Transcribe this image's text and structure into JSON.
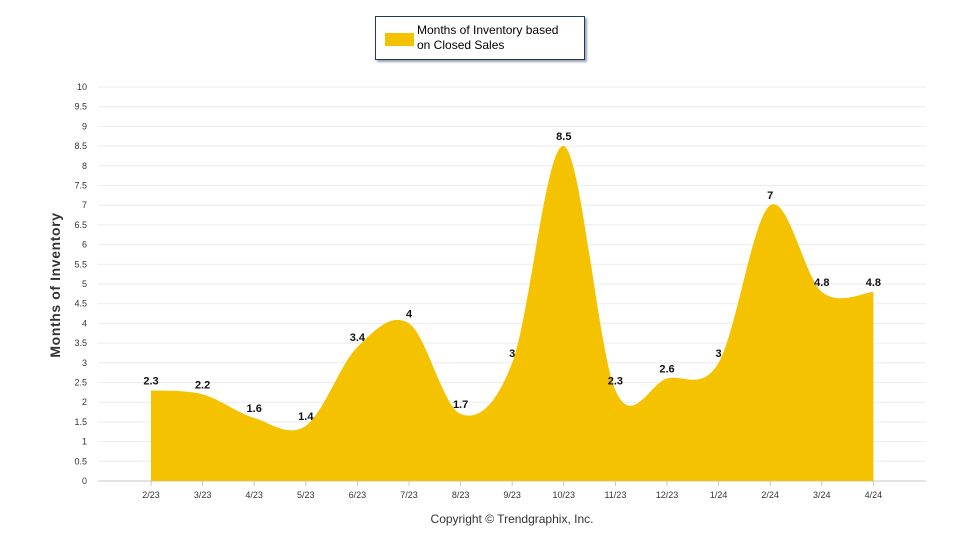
{
  "chart_data": {
    "type": "area",
    "title": "",
    "xlabel": "",
    "ylabel": "Months of Inventory",
    "ylim": [
      0,
      10
    ],
    "y_ticks": [
      "0",
      "0.5",
      "1",
      "1.5",
      "2",
      "2.5",
      "3",
      "3.5",
      "4",
      "4.5",
      "5",
      "5.5",
      "6",
      "6.5",
      "7",
      "7.5",
      "8",
      "8.5",
      "9",
      "9.5",
      "10"
    ],
    "categories": [
      "2/23",
      "3/23",
      "4/23",
      "5/23",
      "6/23",
      "7/23",
      "8/23",
      "9/23",
      "10/23",
      "11/23",
      "12/23",
      "1/24",
      "2/24",
      "3/24",
      "4/24"
    ],
    "series": [
      {
        "name": "Months of Inventory based on Closed Sales",
        "values": [
          2.3,
          2.2,
          1.6,
          1.4,
          3.4,
          4,
          1.7,
          3,
          8.5,
          2.3,
          2.6,
          3,
          7,
          4.8,
          4.8
        ],
        "labels": [
          "2.3",
          "2.2",
          "1.6",
          "1.4",
          "3.4",
          "4",
          "1.7",
          "3",
          "8.5",
          "2.3",
          "2.6",
          "3",
          "7",
          "4.8",
          "4.8"
        ],
        "color": "#f5c200"
      }
    ],
    "legend": {
      "position": "top-center",
      "label_line1": "Months of Inventory based",
      "label_line2": "on Closed Sales"
    }
  },
  "footer": {
    "copyright": "Copyright © Trendgraphix, Inc."
  }
}
